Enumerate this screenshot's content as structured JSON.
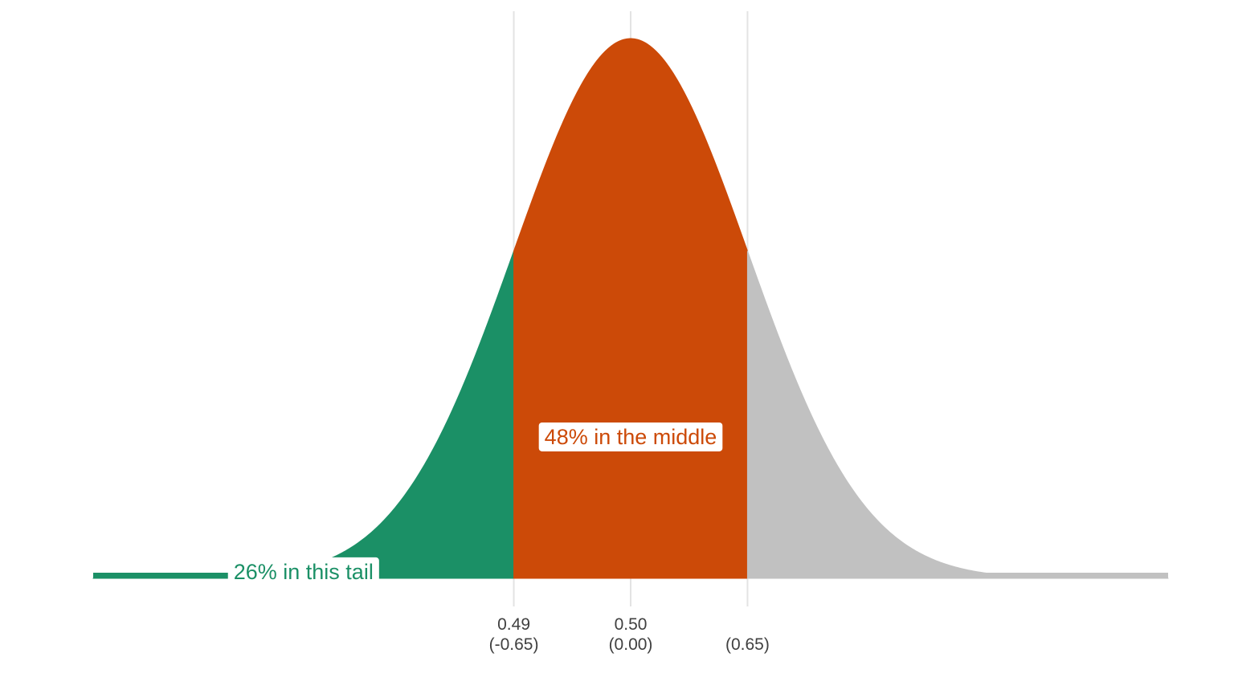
{
  "chart_data": {
    "type": "area",
    "distribution": "normal",
    "mean": 0,
    "sd": 1,
    "xlim": [
      -4.6,
      4.6
    ],
    "grid": "vertical lines at tick positions",
    "regions": [
      {
        "name": "tail",
        "from": -4.6,
        "to": -1.0,
        "color": "#1b9066"
      },
      {
        "name": "middle",
        "from": -1.0,
        "to": 1.0,
        "color": "#cc4a08"
      },
      {
        "name": "right",
        "from": 1.0,
        "to": 4.6,
        "color": "#c1c1c1"
      }
    ],
    "annotations": [
      {
        "text": "26% in this tail",
        "x": -2.8,
        "y": 0.0048,
        "color": "#1b9066"
      },
      {
        "text": "48% in the middle",
        "x": 0.0,
        "y": 0.1045,
        "color": "#cc4a08"
      }
    ],
    "ticks": [
      {
        "x": -1.0,
        "label_top": "0.49",
        "label_bottom": "(-0.65)"
      },
      {
        "x": 0.0,
        "label_top": "0.50",
        "label_bottom": "(0.00)"
      },
      {
        "x": 1.0,
        "label_top": "",
        "label_bottom": "(0.65)"
      }
    ]
  }
}
